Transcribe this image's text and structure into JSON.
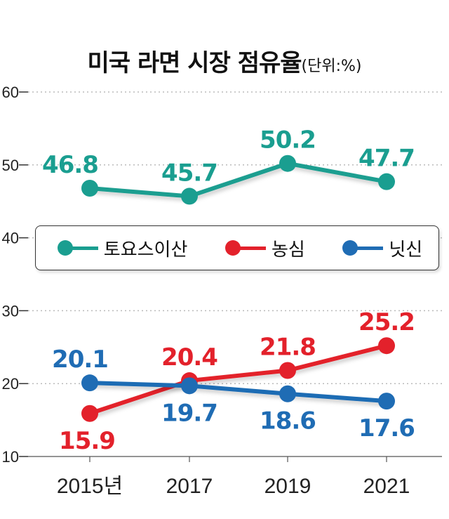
{
  "title": "미국 라면 시장 점유율",
  "unit": "(단위:%)",
  "chart_data": {
    "type": "line",
    "title": "미국 라면 시장 점유율",
    "unit": "%",
    "categories": [
      "2015년",
      "2017",
      "2019",
      "2021"
    ],
    "yticks": [
      60,
      50,
      40,
      30,
      20,
      10
    ],
    "ylim": [
      10,
      60
    ],
    "grid": true,
    "legend": "middle",
    "series": [
      {
        "name": "토요스이산",
        "color": "#1a9e90",
        "values": [
          46.8,
          45.7,
          50.2,
          47.7
        ],
        "labels": [
          "46.8",
          "45.7",
          "50.2",
          "47.7"
        ]
      },
      {
        "name": "농심",
        "color": "#e3212b",
        "values": [
          15.9,
          20.4,
          21.8,
          25.2
        ],
        "labels": [
          "15.9",
          "20.4",
          "21.8",
          "25.2"
        ]
      },
      {
        "name": "닛신",
        "color": "#1f6cb4",
        "values": [
          20.1,
          19.7,
          18.6,
          17.6
        ],
        "labels": [
          "20.1",
          "19.7",
          "18.6",
          "17.6"
        ]
      }
    ]
  }
}
